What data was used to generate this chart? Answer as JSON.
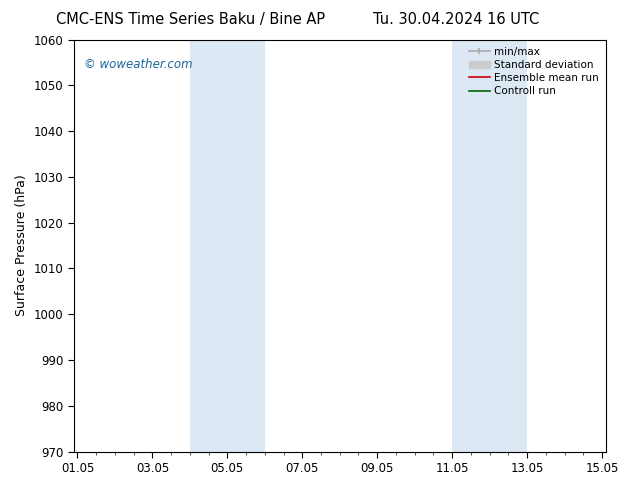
{
  "title_left": "CMC-ENS Time Series Baku / Bine AP",
  "title_right": "Tu. 30.04.2024 16 UTC",
  "ylabel": "Surface Pressure (hPa)",
  "ylim": [
    970,
    1060
  ],
  "yticks": [
    970,
    980,
    990,
    1000,
    1010,
    1020,
    1030,
    1040,
    1050,
    1060
  ],
  "x_tick_labels": [
    "01.05",
    "03.05",
    "05.05",
    "07.05",
    "09.05",
    "11.05",
    "13.05",
    "15.05"
  ],
  "x_tick_positions": [
    0,
    2,
    4,
    6,
    8,
    10,
    12,
    14
  ],
  "xlim": [
    -0.1,
    14.1
  ],
  "watermark": "© woweather.com",
  "background_color": "#ffffff",
  "plot_bg_color": "#ffffff",
  "shaded_bands": [
    {
      "x_start": 3.0,
      "x_end": 5.0,
      "color": "#dce9f5"
    },
    {
      "x_start": 10.0,
      "x_end": 12.0,
      "color": "#dce9f5"
    }
  ],
  "legend_items": [
    {
      "label": "min/max",
      "color": "#aaaaaa",
      "lw": 1.2,
      "style": "line_with_caps"
    },
    {
      "label": "Standard deviation",
      "color": "#cccccc",
      "lw": 6,
      "style": "thick"
    },
    {
      "label": "Ensemble mean run",
      "color": "#cc0000",
      "lw": 1.2,
      "style": "line"
    },
    {
      "label": "Controll run",
      "color": "#006600",
      "lw": 1.2,
      "style": "line"
    }
  ],
  "title_fontsize": 10.5,
  "tick_fontsize": 8.5,
  "ylabel_fontsize": 9,
  "legend_fontsize": 7.5,
  "watermark_color": "#1a6699",
  "watermark_fontsize": 8.5,
  "grid_color": "#cccccc",
  "axis_color": "#000000",
  "minor_tick_count": 4
}
